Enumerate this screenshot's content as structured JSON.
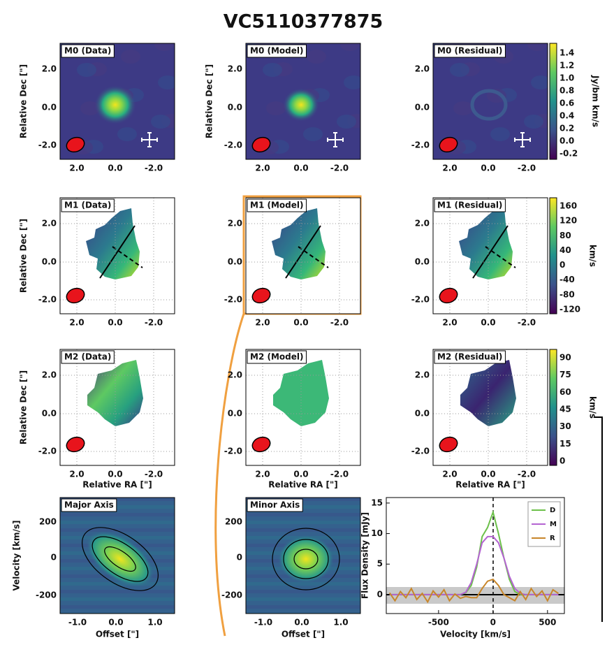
{
  "title": "VC5110377875",
  "map_panels": [
    [
      "M0 (Data)",
      "M0 (Model)",
      "M0 (Residual)"
    ],
    [
      "M1 (Data)",
      "M1 (Model)",
      "M1 (Residual)"
    ],
    [
      "M2 (Data)",
      "M2 (Model)",
      "M2 (Residual)"
    ]
  ],
  "pv_panels": [
    "Major Axis",
    "Minor Axis"
  ],
  "map_ticks": [
    "2.0",
    "0.0",
    "-2.0"
  ],
  "pv_xticks": [
    "-1.0",
    "0.0",
    "1.0"
  ],
  "pv_yticks": [
    "200",
    "0",
    "-200"
  ],
  "labels": {
    "dec": "Relative Dec [\"]",
    "ra": "Relative RA [\"]",
    "velocity": "Velocity [km/s]",
    "offset": "Offset [\"]"
  },
  "colorbars": [
    {
      "label": "Jy/bm km/s",
      "ticks": [
        "1.4",
        "1.2",
        "1.0",
        "0.8",
        "0.6",
        "0.4",
        "0.2",
        "0.0",
        "-0.2"
      ]
    },
    {
      "label": "km/s",
      "ticks": [
        "160",
        "120",
        "80",
        "40",
        "0",
        "-40",
        "-80",
        "-120"
      ]
    },
    {
      "label": "km/s",
      "ticks": [
        "90",
        "75",
        "60",
        "45",
        "30",
        "15",
        "0"
      ]
    }
  ],
  "chart_data": {
    "type": "line",
    "xlabel": "Velocity [km/s]",
    "ylabel": "Flux Density [mJy]",
    "x": [
      -950,
      -900,
      -850,
      -800,
      -750,
      -700,
      -650,
      -600,
      -550,
      -500,
      -450,
      -400,
      -350,
      -300,
      -250,
      -200,
      -150,
      -100,
      -50,
      0,
      50,
      100,
      150,
      200,
      250,
      300,
      350,
      400,
      450,
      500,
      550,
      600
    ],
    "series": [
      {
        "name": "D",
        "color": "#6cc04a",
        "values": [
          0,
          0,
          0,
          0,
          0,
          0,
          0,
          0,
          0,
          0,
          0,
          0,
          0,
          0,
          0.3,
          1.5,
          4.5,
          9.5,
          11,
          13.5,
          10,
          6,
          2.5,
          0.5,
          0,
          0,
          0,
          0,
          0,
          0,
          0,
          0
        ]
      },
      {
        "name": "M",
        "color": "#b464d2",
        "values": [
          0,
          0,
          0,
          0,
          0,
          0,
          0,
          0,
          0,
          0,
          0,
          0,
          0,
          0,
          0.4,
          2,
          5,
          8.5,
          9.5,
          9.5,
          8.5,
          6,
          3,
          1,
          0.2,
          0,
          0,
          0,
          0,
          0,
          0,
          0
        ]
      },
      {
        "name": "R",
        "color": "#c8862a",
        "values": [
          0.3,
          -1,
          0.5,
          -0.5,
          1,
          -0.8,
          0.2,
          -1.2,
          0.6,
          -0.4,
          0.8,
          -1,
          0.1,
          -0.6,
          -0.3,
          -0.5,
          -0.5,
          1,
          2.2,
          2.5,
          1.5,
          0,
          -0.5,
          -1,
          0.5,
          -0.8,
          1,
          -0.3,
          0.6,
          -1,
          0.8,
          0.2
        ]
      }
    ],
    "xlim": [
      -980,
      655
    ],
    "xticks": [
      -500,
      0,
      500
    ],
    "ylim": [
      -3.1,
      15.9
    ],
    "yticks": [
      0,
      5,
      10,
      15
    ],
    "legend": "upper right"
  }
}
